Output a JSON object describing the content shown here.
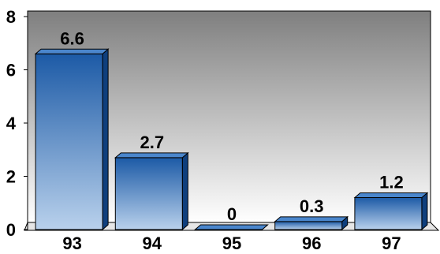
{
  "chart_data": {
    "type": "bar",
    "categories": [
      "93",
      "94",
      "95",
      "96",
      "97"
    ],
    "values": [
      6.6,
      2.7,
      0,
      0.3,
      1.2
    ],
    "data_labels": [
      "6.6",
      "2.7",
      "0",
      "0.3",
      "1.2"
    ],
    "y_ticks": [
      "0",
      "2",
      "4",
      "6",
      "8"
    ],
    "ylim": [
      0,
      8
    ],
    "grid": false,
    "legend": "none",
    "colors": {
      "bar_top": "#1c5aa6",
      "bar_bottom": "#b9d1ec",
      "bar_side": "#0f3f7d",
      "bar_cap": "#4a86cc",
      "plot_top": "#7f7f7f",
      "plot_bottom": "#ffffff"
    }
  }
}
